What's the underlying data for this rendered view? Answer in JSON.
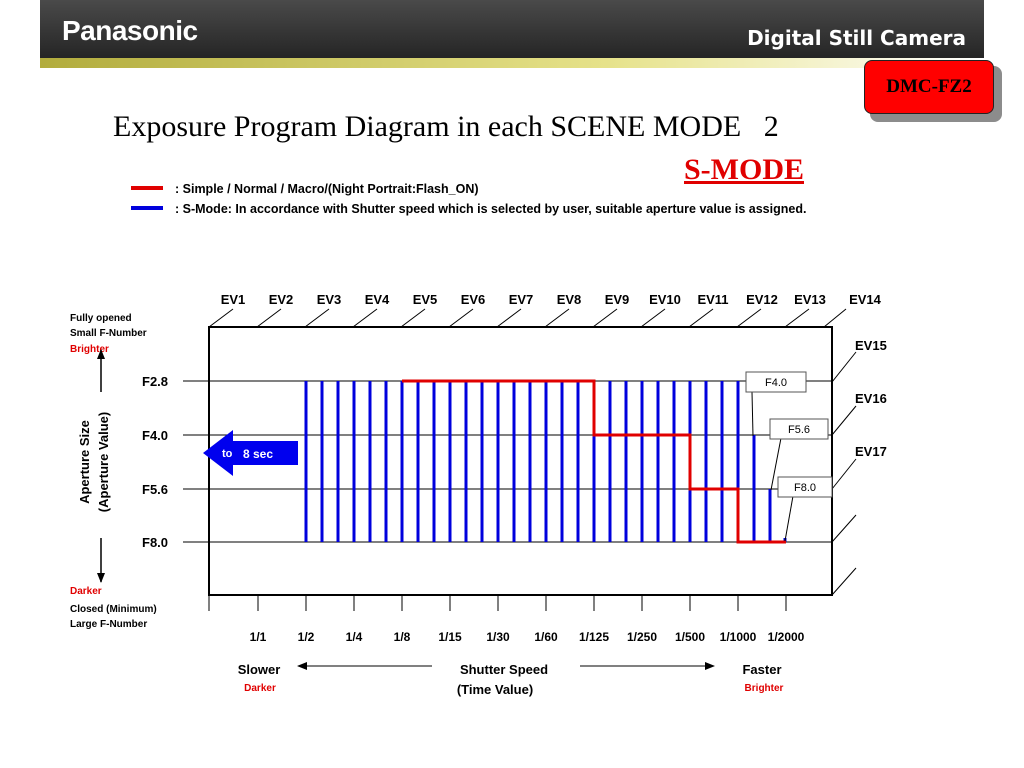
{
  "header": {
    "brand": "Panasonic",
    "product": "Digital Still Camera",
    "model_badge": "DMC-FZ2"
  },
  "title": "Exposure Program Diagram in each SCENE MODE   2",
  "mode_label": "S-MODE",
  "legend": [
    {
      "color": "#e00000",
      "text": ":  Simple / Normal / Macro/(Night Portrait:Flash_ON)"
    },
    {
      "color": "#0000dd",
      "text": ":  S-Mode: In accordance with Shutter speed which is selected by user, suitable aperture value is assigned."
    }
  ],
  "diagram": {
    "ev_labels_top": [
      "EV1",
      "EV2",
      "EV3",
      "EV4",
      "EV5",
      "EV6",
      "EV7",
      "EV8",
      "EV9",
      "EV10",
      "EV11",
      "EV12",
      "EV13",
      "EV14"
    ],
    "ev_labels_right": [
      "EV15",
      "EV16",
      "EV17"
    ],
    "aperture_ticks": [
      "F2.8",
      "F4.0",
      "F5.6",
      "F8.0"
    ],
    "shutter_ticks": [
      "1/1",
      "1/2",
      "1/4",
      "1/8",
      "1/15",
      "1/30",
      "1/60",
      "1/125",
      "1/250",
      "1/500",
      "1/1000",
      "1/2000"
    ],
    "left_top_labels": [
      "Fully opened",
      "Small F-Number",
      "Brighter"
    ],
    "left_bottom_labels": [
      "Darker",
      "Closed (Minimum)",
      "Large  F-Number"
    ],
    "y_axis_title": [
      "Aperture Size",
      "(Aperture Value)"
    ],
    "arrow_label_prefix": "to",
    "arrow_label_value": "8 sec",
    "callouts": [
      "F4.0",
      "F5.6",
      "F8.0"
    ],
    "x_axis": {
      "left_label": "Slower",
      "left_sub": "Darker",
      "center_label": "Shutter Speed",
      "center_sub": "(Time Value)",
      "right_label": "Faster",
      "right_sub": "Brighter"
    },
    "colors": {
      "program_line": "#e00000",
      "s_mode_bars": "#0000dd",
      "arrow": "#0000ee"
    },
    "program_line_points": [
      {
        "shutter": "1/8",
        "aperture": "F2.8"
      },
      {
        "shutter": "1/125",
        "aperture": "F2.8"
      },
      {
        "shutter": "1/125",
        "aperture": "F4.0"
      },
      {
        "shutter": "1/500",
        "aperture": "F4.0"
      },
      {
        "shutter": "1/500",
        "aperture": "F5.6"
      },
      {
        "shutter": "1/1000",
        "aperture": "F5.6"
      },
      {
        "shutter": "1/1000",
        "aperture": "F8.0"
      },
      {
        "shutter": "1/2000",
        "aperture": "F8.0"
      }
    ]
  }
}
